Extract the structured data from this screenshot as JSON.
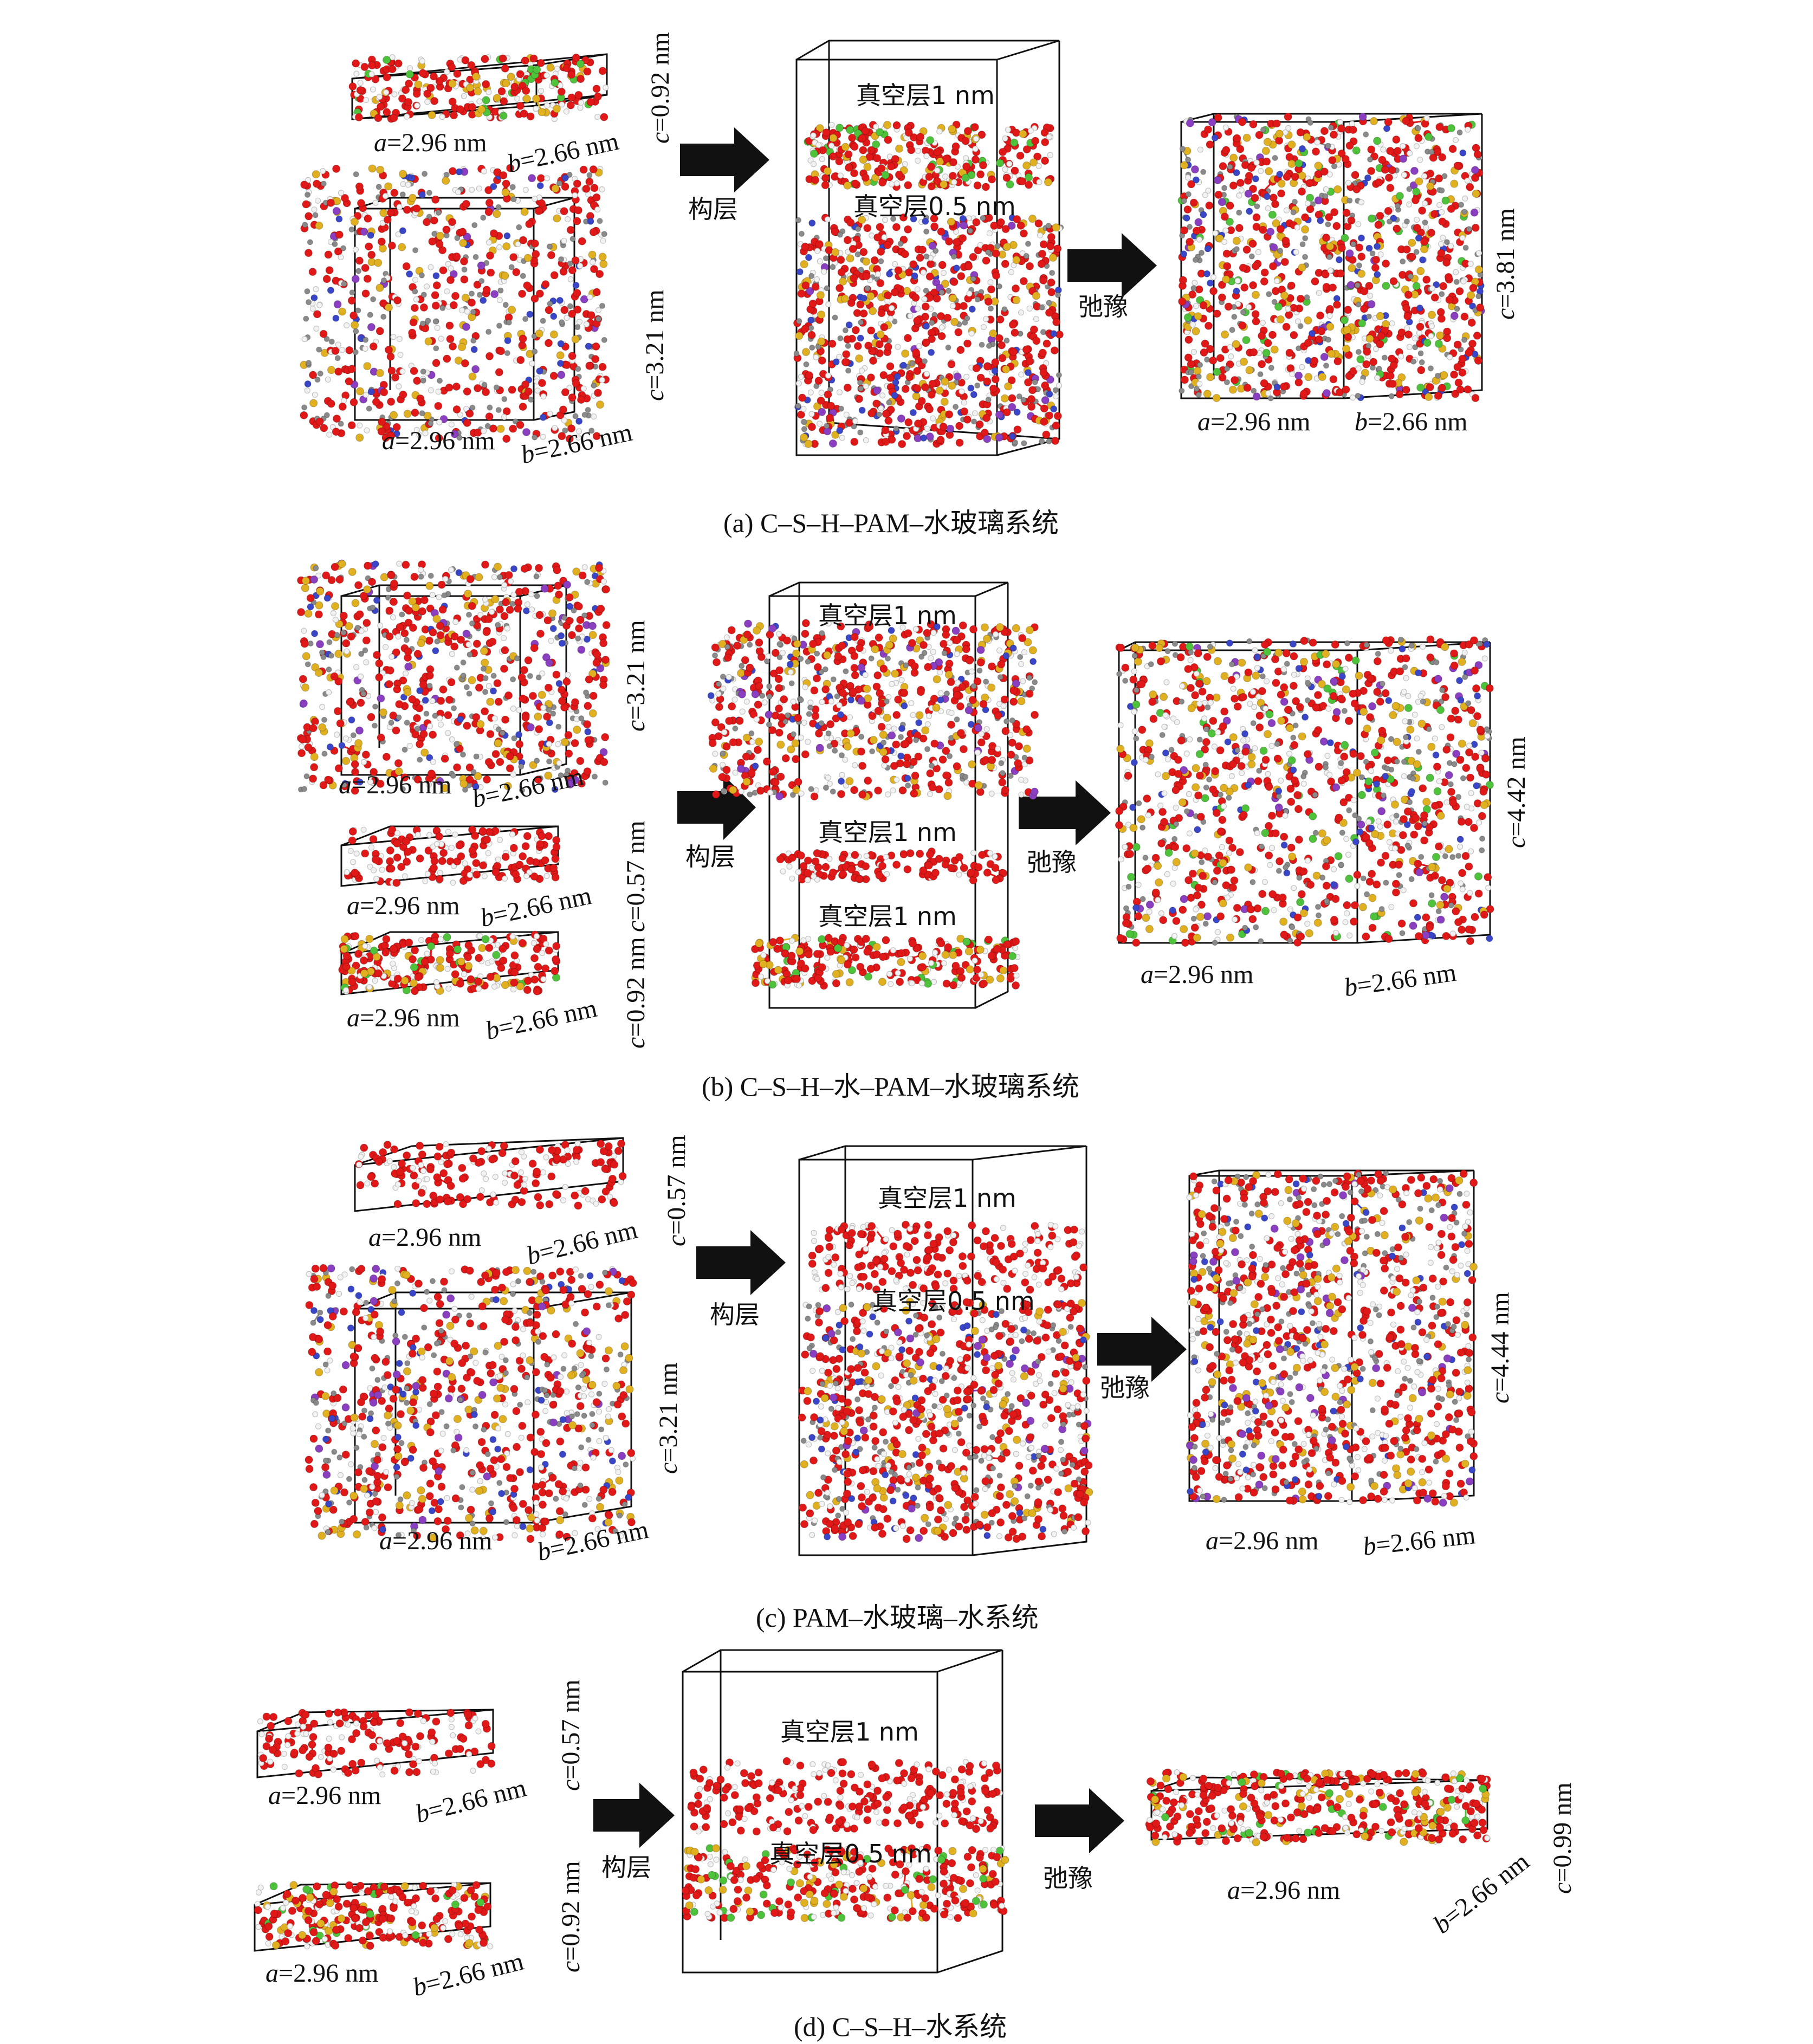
{
  "panels": [
    {
      "caption": "(a) C–S–H–PAM–水玻璃系统",
      "thin_a": "=2.96 nm",
      "thin_b": "=2.66 nm",
      "thin_c": "=0.92 nm",
      "thick_a": "=2.96 nm",
      "thick_b": "=2.66 nm",
      "thick_c": "=3.21 nm",
      "vac_top": "真空层1 nm",
      "vac_mid": "真空层0.5 nm",
      "step1": "构层",
      "step2": "弛豫",
      "res_a": "=2.96 nm",
      "res_b": "=2.66 nm",
      "res_c": "=3.81 nm"
    },
    {
      "caption": "(b) C–S–H–水–PAM–水玻璃系统",
      "pam_a": "=2.96 nm",
      "pam_b": "=2.66 nm",
      "pam_c": "=3.21 nm",
      "water_a": "=2.96 nm",
      "water_b": "=2.66 nm",
      "water_c": "=0.57 nm",
      "csh_a": "=2.96 nm",
      "csh_b": "=2.66 nm",
      "csh_c": "=0.92 nm",
      "vac_top": "真空层1 nm",
      "vac_mid": "真空层1 nm",
      "vac_bot": "真空层1 nm",
      "step1": "构层",
      "step2": "弛豫",
      "res_a": "=2.96 nm",
      "res_b": "=2.66 nm",
      "res_c": "=4.42 nm"
    },
    {
      "caption": "(c) PAM–水玻璃–水系统",
      "thin_a": "=2.96 nm",
      "thin_b": "=2.66 nm",
      "thin_c": "=0.57 nm",
      "thick_a": "=2.96 nm",
      "thick_b": "=2.66 nm",
      "thick_c": "=3.21 nm",
      "vac_top": "真空层1 nm",
      "vac_mid": "真空层0.5 nm",
      "step1": "构层",
      "step2": "弛豫",
      "res_a": "=2.96 nm",
      "res_b": "=2.66 nm",
      "res_c": "=4.44 nm"
    },
    {
      "caption": "(d) C–S–H–水系统",
      "thin_a": "=2.96 nm",
      "thin_b": "=2.66 nm",
      "thin_c": "=0.57 nm",
      "thick_a": "=2.96 nm",
      "thick_b": "=2.66 nm",
      "thick_c": "=0.92 nm",
      "vac_top": "真空层1 nm",
      "vac_mid": "真空层0.5 nm",
      "step1": "构层",
      "step2": "弛豫",
      "res_a": "=2.96 nm",
      "res_b": "=2.66 nm",
      "res_c": "=0.99 nm"
    }
  ],
  "axis_letters": {
    "a": "a",
    "b": "b",
    "c": "c"
  },
  "atom_colors": {
    "oxygen": "#e01818",
    "silicon": "#e0b020",
    "hydrogen": "#f2f2f2",
    "carbon": "#8a8a8a",
    "nitrogen": "#3a46c8",
    "sodium": "#8a3ec0",
    "calcium": "#4ec23a"
  },
  "icons": {
    "arrow": "right-arrow-icon"
  }
}
